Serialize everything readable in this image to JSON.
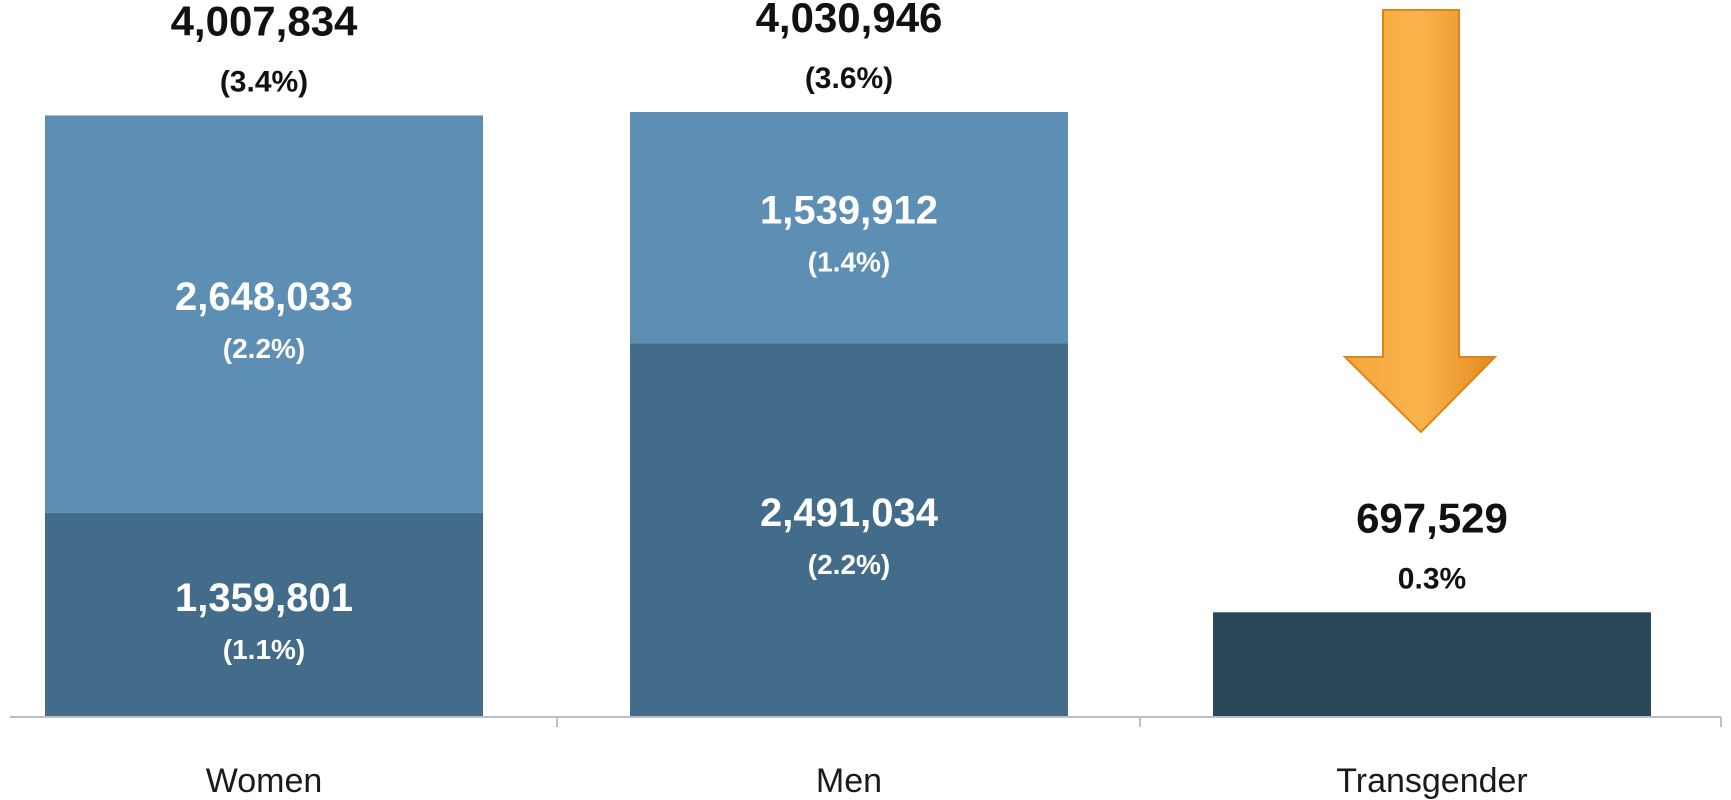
{
  "chart_data": {
    "type": "bar",
    "stacked": true,
    "categories": [
      "Women",
      "Men",
      "Transgender"
    ],
    "series": [
      {
        "values": [
          1359801,
          2491034,
          697529
        ],
        "labels": [
          "1,359,801",
          "2,491,034",
          ""
        ],
        "pct_labels": [
          "(1.1%)",
          "(2.2%)",
          ""
        ],
        "colors": [
          "#426c8a",
          "#426c8a",
          "#2a4659"
        ]
      },
      {
        "values": [
          2648033,
          1539912,
          0
        ],
        "labels": [
          "2,648,033",
          "1,539,912",
          ""
        ],
        "pct_labels": [
          "(2.2%)",
          "(1.4%)",
          ""
        ],
        "colors": [
          "#5d8fb4",
          "#5d8fb4",
          "#5d8fb4"
        ]
      }
    ],
    "totals": [
      4007834,
      4030946,
      697529
    ],
    "total_labels": [
      "4,007,834",
      "4,030,946",
      "697,529"
    ],
    "total_pct_labels": [
      "(3.4%)",
      "(3.6%)",
      "0.3%"
    ],
    "ylim": [
      0,
      4030946
    ],
    "grid": false,
    "legend": "none",
    "title": "",
    "xlabel": "",
    "ylabel": "",
    "annotations": [
      {
        "kind": "arrow",
        "direction": "down",
        "category": "Transgender",
        "color": "#f39a2e"
      }
    ]
  }
}
